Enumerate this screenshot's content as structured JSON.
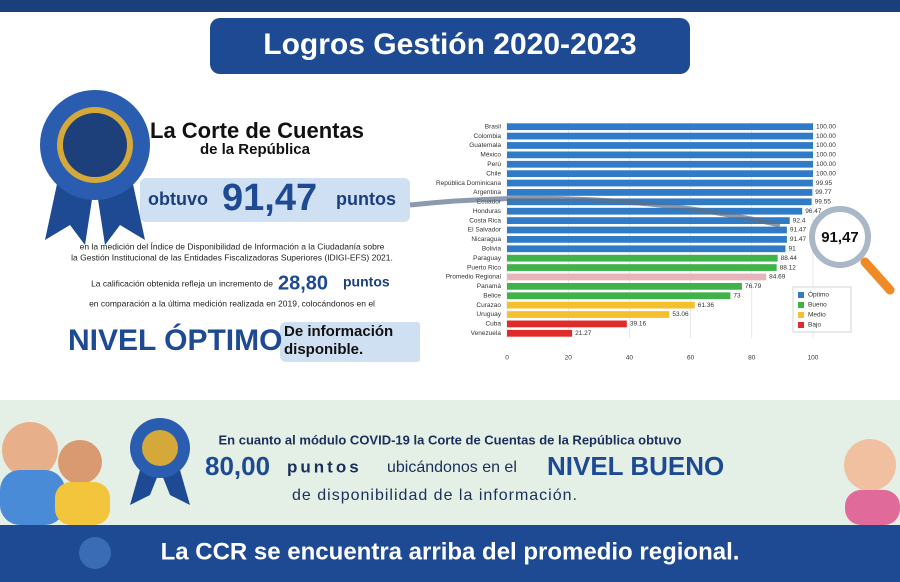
{
  "header": {
    "title": "Logros Gestión 2020-2023"
  },
  "intro": {
    "org_line1": "La Corte de Cuentas",
    "org_line2": "de la República",
    "obtuvo": "obtuvo",
    "score": "91,47",
    "puntos": "puntos",
    "description": [
      "en la medición del Índice de Disponibilidad de Información a la Ciudadanía sobre",
      "la Gestión Institucional de las Entidades Fiscalizadoras Superiores (IDIGI-EFS) 2021."
    ],
    "increment_text": "La calificación obtenida refleja un incremento de",
    "increment": "28,80",
    "increment_unit": "puntos",
    "comparison": "en comparación a la última medición realizada en 2019, colocándonos en el",
    "level": "NIVEL ÓPTIMO",
    "level_desc": [
      "De información",
      "disponible."
    ]
  },
  "magnifier_label": "91,47",
  "chart_data": {
    "type": "bar",
    "orientation": "horizontal",
    "categories": [
      "Brasil",
      "Colombia",
      "Guatemala",
      "México",
      "Perú",
      "Chile",
      "República Dominicana",
      "Argentina",
      "Ecuador",
      "Honduras",
      "Costa Rica",
      "El Salvador",
      "Nicaragua",
      "Bolivia",
      "Paraguay",
      "Puerto Rico",
      "Promedio Regional",
      "Panamá",
      "Belice",
      "Curazao",
      "Uruguay",
      "Cuba",
      "Venezuela"
    ],
    "values": [
      100,
      100,
      100,
      100,
      100,
      100,
      99.95,
      99.77,
      99.55,
      96.47,
      92.4,
      91.47,
      91.47,
      91,
      88.44,
      88.12,
      84.69,
      76.79,
      73,
      61.36,
      53.06,
      39.16,
      21.27
    ],
    "value_labels": [
      "100.00",
      "100.00",
      "100.00",
      "100.00",
      "100.00",
      "100.00",
      "99.95",
      "99.77",
      "99.55",
      "96.47",
      "92.4",
      "91.47",
      "91.47",
      "91",
      "88.44",
      "88.12",
      "84.69",
      "76.79",
      "73",
      "61.36",
      "53.06",
      "39.16",
      "21.27"
    ],
    "colors": [
      "#2f7bc7",
      "#2f7bc7",
      "#2f7bc7",
      "#2f7bc7",
      "#2f7bc7",
      "#2f7bc7",
      "#2f7bc7",
      "#2f7bc7",
      "#2f7bc7",
      "#2f7bc7",
      "#2f7bc7",
      "#2f7bc7",
      "#2f7bc7",
      "#2f7bc7",
      "#3fb24a",
      "#3fb24a",
      "#e8b4bc",
      "#3fb24a",
      "#3fb24a",
      "#f5c02c",
      "#f5c02c",
      "#e02b2b",
      "#e02b2b"
    ],
    "xlim": [
      0,
      100
    ],
    "xticks": [
      0,
      20,
      40,
      60,
      80,
      100
    ],
    "grid": true,
    "legend": [
      {
        "name": "Óptimo",
        "color": "#2f7bc7"
      },
      {
        "name": "Bueno",
        "color": "#3fb24a"
      },
      {
        "name": "Medio",
        "color": "#f5c02c"
      },
      {
        "name": "Bajo",
        "color": "#e02b2b"
      }
    ]
  },
  "covid": {
    "line1": "En cuanto al módulo COVID-19 la Corte de Cuentas de la República obtuvo",
    "score": "80,00",
    "puntos": "puntos",
    "middle": "ubicándonos en el",
    "level": "NIVEL BUENO",
    "line3": "de disponibilidad de la información."
  },
  "footer": {
    "text": "La CCR se encuentra arriba del promedio regional."
  }
}
